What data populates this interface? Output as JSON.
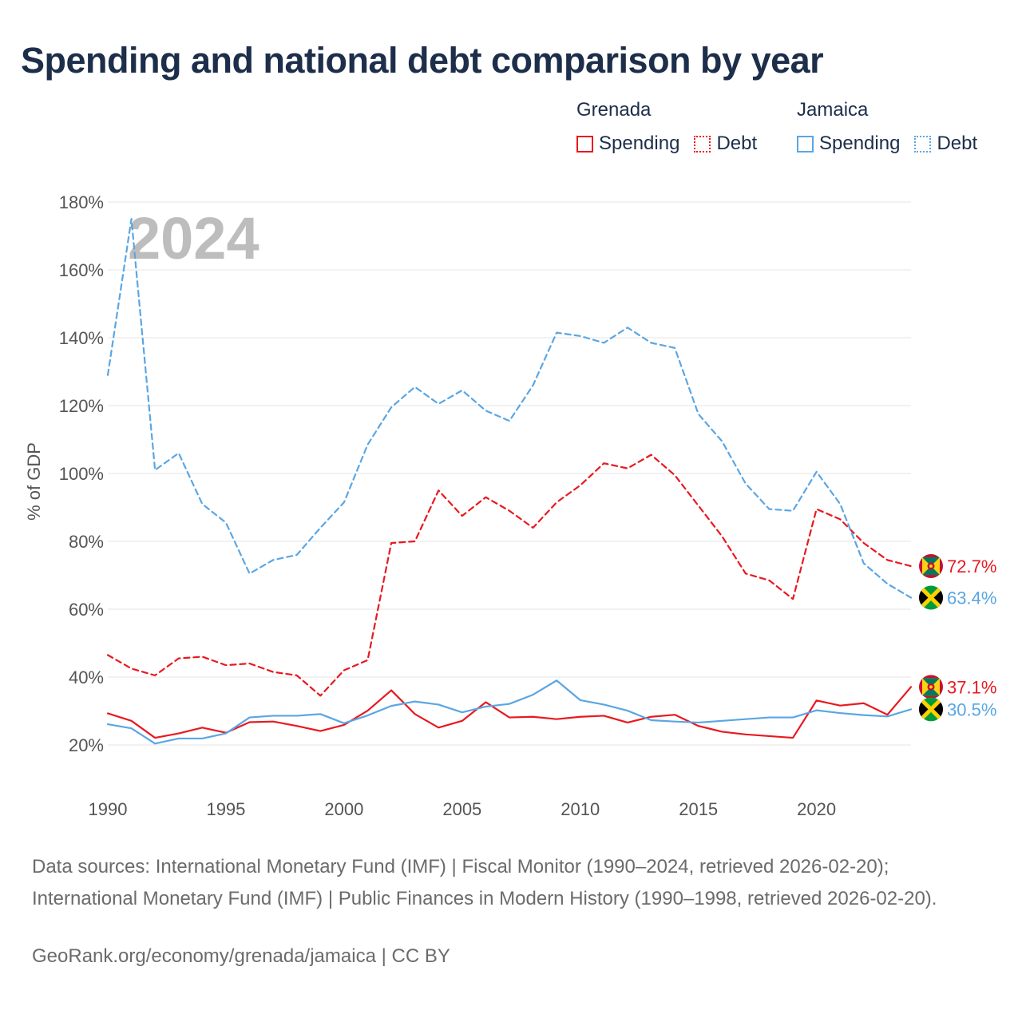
{
  "title": "Spending and national debt comparison by year",
  "legend": {
    "groups": [
      {
        "name": "Grenada",
        "spending_label": "Spending",
        "debt_label": "Debt",
        "color": "#e8191f"
      },
      {
        "name": "Jamaica",
        "spending_label": "Spending",
        "debt_label": "Debt",
        "color": "#5aa6e3"
      }
    ]
  },
  "year_watermark": "2024",
  "footer": {
    "sources": "Data sources: International Monetary Fund (IMF) | Fiscal Monitor (1990–2024, retrieved 2026-02-20); International Monetary Fund (IMF) | Public Finances in Modern History (1990–1998, retrieved 2026-02-20).",
    "credit": "GeoRank.org/economy/grenada/jamaica | CC BY"
  },
  "chart_data": {
    "type": "line",
    "title": "Spending and national debt comparison by year",
    "xlabel": "",
    "ylabel": "% of GDP",
    "xlim": [
      1990,
      2024
    ],
    "ylim": [
      10,
      185
    ],
    "x_ticks": [
      1990,
      1995,
      2000,
      2005,
      2010,
      2015,
      2020
    ],
    "x_tick_labels": [
      "1990",
      "1995",
      "2000",
      "2005",
      "2010",
      "2015",
      "2020"
    ],
    "y_ticks": [
      20,
      40,
      60,
      80,
      100,
      120,
      140,
      160,
      180
    ],
    "y_tick_labels": [
      "20%",
      "40%",
      "60%",
      "80%",
      "100%",
      "120%",
      "140%",
      "160%",
      "180%"
    ],
    "grid": true,
    "x": [
      1990,
      1991,
      1992,
      1993,
      1994,
      1995,
      1996,
      1997,
      1998,
      1999,
      2000,
      2001,
      2002,
      2003,
      2004,
      2005,
      2006,
      2007,
      2008,
      2009,
      2010,
      2011,
      2012,
      2013,
      2014,
      2015,
      2016,
      2017,
      2018,
      2019,
      2020,
      2021,
      2022,
      2023,
      2024
    ],
    "series": [
      {
        "name": "Grenada Debt",
        "country": "Grenada",
        "metric": "Debt",
        "style": "dashed",
        "color": "#e8191f",
        "end_label": "72.7%",
        "values": [
          46.5,
          42.5,
          40.5,
          45.5,
          46,
          43.5,
          44,
          41.5,
          40.5,
          34.5,
          42,
          45,
          79.5,
          80,
          95,
          87.5,
          93,
          89,
          84,
          91.5,
          96.5,
          103,
          101.5,
          105.5,
          99.5,
          90.5,
          81.5,
          70.5,
          68.5,
          63,
          89.5,
          86.5,
          79.5,
          74.5,
          72.7
        ]
      },
      {
        "name": "Jamaica Debt",
        "country": "Jamaica",
        "metric": "Debt",
        "style": "dashed",
        "color": "#5aa6e3",
        "end_label": "63.4%",
        "values": [
          129,
          175,
          101,
          106,
          91,
          85.5,
          70.5,
          74.5,
          76,
          84,
          91.5,
          108.5,
          119.5,
          125.5,
          120.5,
          124.5,
          118.5,
          115.5,
          126,
          141.5,
          140.5,
          138.5,
          143,
          138.5,
          137,
          117.5,
          109.5,
          97,
          89.5,
          89,
          100.5,
          91,
          73.5,
          67.5,
          63.4
        ]
      },
      {
        "name": "Grenada Spending",
        "country": "Grenada",
        "metric": "Spending",
        "style": "solid",
        "color": "#e8191f",
        "end_label": "37.1%",
        "values": [
          29.3,
          27.1,
          22.1,
          23.4,
          25.1,
          23.6,
          26.7,
          26.9,
          25.6,
          24.1,
          25.9,
          30.1,
          36.1,
          29.1,
          25.1,
          27.1,
          32.6,
          28.1,
          28.3,
          27.6,
          28.3,
          28.6,
          26.6,
          28.3,
          28.9,
          25.6,
          23.9,
          23.1,
          22.6,
          22.1,
          33.1,
          31.6,
          32.3,
          28.9,
          37.1
        ]
      },
      {
        "name": "Jamaica Spending",
        "country": "Jamaica",
        "metric": "Spending",
        "style": "solid",
        "color": "#5aa6e3",
        "end_label": "30.5%",
        "values": [
          26.1,
          24.9,
          20.4,
          21.9,
          21.9,
          23.4,
          28.1,
          28.6,
          28.6,
          29.1,
          26.4,
          28.7,
          31.5,
          32.8,
          31.9,
          29.6,
          31.3,
          32.1,
          34.8,
          39,
          33.2,
          31.9,
          30.1,
          27.3,
          26.9,
          26.6,
          27.1,
          27.6,
          28.1,
          28.1,
          30.2,
          29.4,
          28.8,
          28.4,
          30.5
        ]
      }
    ]
  }
}
